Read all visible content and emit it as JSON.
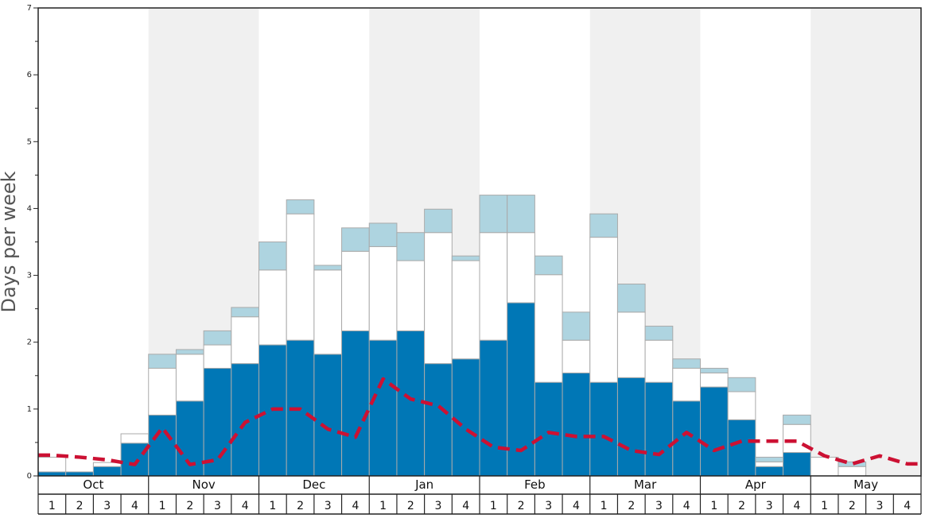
{
  "chart_data": {
    "type": "bar",
    "stacked": true,
    "ylabel": "Days per week",
    "xlabel": "",
    "ylim": [
      0,
      7
    ],
    "y_ticks": [
      0,
      1,
      2,
      3,
      4,
      5,
      6,
      7
    ],
    "months": [
      "Oct",
      "Nov",
      "Dec",
      "Jan",
      "Feb",
      "Mar",
      "Apr",
      "May"
    ],
    "weeks": [
      "1",
      "2",
      "3",
      "4"
    ],
    "colors": {
      "base": "#0077b6",
      "middle": "#ffffff",
      "top": "#aed4e0",
      "line": "#cc1133",
      "band": "#f0f0f0",
      "bar_border": "#aaaaaa",
      "frame": "#222222"
    },
    "series": [
      {
        "name": "Dark blue",
        "values": [
          0.06,
          0.06,
          0.14,
          0.49,
          0.91,
          1.12,
          1.61,
          1.68,
          1.96,
          2.03,
          1.82,
          2.17,
          2.03,
          2.17,
          1.68,
          1.75,
          2.03,
          2.59,
          1.4,
          1.54,
          1.4,
          1.47,
          1.4,
          1.12,
          1.33,
          0.84,
          0.14,
          0.35,
          0,
          0,
          0,
          0
        ]
      },
      {
        "name": "White",
        "values": [
          0.22,
          0.0,
          0.06,
          0.14,
          0.7,
          0.7,
          0.35,
          0.7,
          1.12,
          1.89,
          1.26,
          1.19,
          1.4,
          1.05,
          1.96,
          1.47,
          1.61,
          1.05,
          1.61,
          0.49,
          2.17,
          0.98,
          0.63,
          0.49,
          0.21,
          0.42,
          0.07,
          0.42,
          0.28,
          0.14,
          0,
          0
        ]
      },
      {
        "name": "Light blue",
        "values": [
          0,
          0,
          0,
          0,
          0.21,
          0.07,
          0.21,
          0.14,
          0.42,
          0.21,
          0.07,
          0.35,
          0.35,
          0.42,
          0.35,
          0.07,
          0.56,
          0.56,
          0.28,
          0.42,
          0.35,
          0.42,
          0.21,
          0.14,
          0.07,
          0.21,
          0.07,
          0.14,
          0,
          0.07,
          0,
          0
        ]
      }
    ],
    "line_series": {
      "name": "Red dashed",
      "values": [
        0.31,
        0.28,
        0.24,
        0.17,
        0.72,
        0.17,
        0.24,
        0.8,
        1.0,
        1.0,
        0.7,
        0.58,
        1.45,
        1.15,
        1.05,
        0.7,
        0.43,
        0.38,
        0.65,
        0.59,
        0.59,
        0.38,
        0.32,
        0.65,
        0.38,
        0.52,
        0.52,
        0.52,
        0.3,
        0.18,
        0.3,
        0.18
      ]
    }
  }
}
